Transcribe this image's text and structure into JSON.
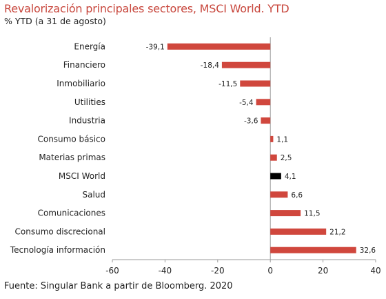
{
  "header": {
    "title": "Revalorización principales sectores, MSCI World. YTD",
    "subtitle": "% YTD (a 31 de agosto)"
  },
  "footer": {
    "source": "Fuente: Singular Bank a partir de Bloomberg. 2020"
  },
  "colors": {
    "bar_default": "#d0473d",
    "bar_highlight": "#000000",
    "title": "#c8473d"
  },
  "chart_data": {
    "type": "bar",
    "orientation": "horizontal",
    "title": "Revalorización principales sectores, MSCI World. YTD",
    "subtitle": "% YTD (a 31 de agosto)",
    "categories": [
      "Energía",
      "Financiero",
      "Inmobiliario",
      "Utilities",
      "Industria",
      "Consumo básico",
      "Materias primas",
      "MSCI World",
      "Salud",
      "Comunicaciones",
      "Consumo discrecional",
      "Tecnología información"
    ],
    "values": [
      -39.1,
      -18.4,
      -11.5,
      -5.4,
      -3.6,
      1.1,
      2.5,
      4.1,
      6.6,
      11.5,
      21.2,
      32.6
    ],
    "value_labels": [
      "-39,1",
      "-18,4",
      "-11,5",
      "-5,4",
      "-3,6",
      "1,1",
      "2,5",
      "4,1",
      "6,6",
      "11,5",
      "21,2",
      "32,6"
    ],
    "highlight": "MSCI World",
    "xlim": [
      -60,
      40
    ],
    "xticks": [
      -60,
      -40,
      -20,
      0,
      20,
      40
    ],
    "xtick_labels": [
      "-60",
      "-40",
      "-20",
      "0",
      "20",
      "40"
    ],
    "grid": false,
    "legend": "none"
  }
}
